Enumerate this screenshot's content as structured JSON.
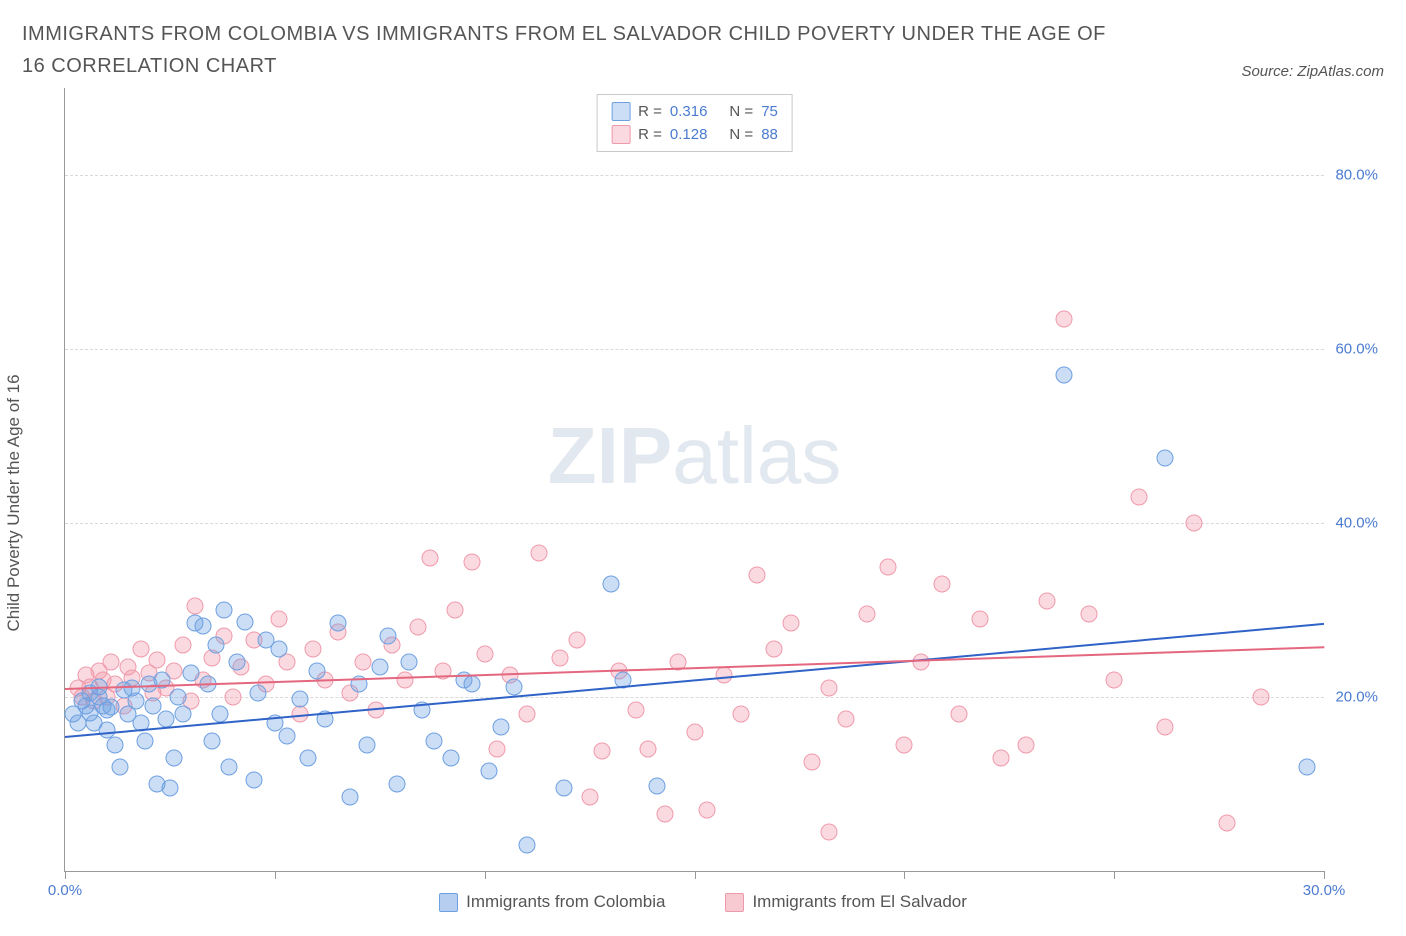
{
  "title": "IMMIGRANTS FROM COLOMBIA VS IMMIGRANTS FROM EL SALVADOR CHILD POVERTY UNDER THE AGE OF 16 CORRELATION CHART",
  "source_label": "Source: ZipAtlas.com",
  "y_axis_label": "Child Poverty Under the Age of 16",
  "watermark": {
    "bold": "ZIP",
    "light": "atlas"
  },
  "chart": {
    "type": "scatter",
    "background_color": "#ffffff",
    "grid_color": "#d9d9d9",
    "axis_color": "#999999",
    "tick_label_color": "#4a7bd0",
    "xlim": [
      0,
      30
    ],
    "ylim": [
      0,
      90
    ],
    "xticks": [
      0,
      5,
      10,
      15,
      20,
      25,
      30
    ],
    "xtick_labels": [
      "0.0%",
      "",
      "",
      "",
      "",
      "",
      "30.0%"
    ],
    "y_gridlines": [
      20,
      40,
      60,
      80
    ],
    "ytick_labels": [
      "20.0%",
      "40.0%",
      "60.0%",
      "80.0%"
    ],
    "point_radius": 8.5,
    "series": [
      {
        "name": "Immigrants from Colombia",
        "fill": "rgba(110,160,225,0.35)",
        "stroke": "#6ea0e1",
        "line_color": "#2f63c7",
        "r": "0.316",
        "n": "75",
        "trend": {
          "x1": 0,
          "y1": 15.5,
          "x2": 30,
          "y2": 28.5
        },
        "points": [
          [
            0.2,
            18
          ],
          [
            0.3,
            17
          ],
          [
            0.4,
            19.5
          ],
          [
            0.5,
            19
          ],
          [
            0.6,
            20.5
          ],
          [
            0.6,
            18.2
          ],
          [
            0.7,
            17
          ],
          [
            0.8,
            20
          ],
          [
            0.8,
            21.2
          ],
          [
            0.9,
            19
          ],
          [
            1.0,
            18.5
          ],
          [
            1.0,
            16.2
          ],
          [
            1.1,
            18.8
          ],
          [
            1.2,
            14.5
          ],
          [
            1.3,
            12
          ],
          [
            1.4,
            20.8
          ],
          [
            1.5,
            18
          ],
          [
            1.6,
            21
          ],
          [
            1.7,
            19.5
          ],
          [
            1.8,
            17
          ],
          [
            1.9,
            15
          ],
          [
            2.0,
            21.5
          ],
          [
            2.1,
            19
          ],
          [
            2.2,
            10
          ],
          [
            2.3,
            22
          ],
          [
            2.4,
            17.5
          ],
          [
            2.5,
            9.5
          ],
          [
            2.6,
            13
          ],
          [
            2.7,
            20
          ],
          [
            2.8,
            18
          ],
          [
            3.0,
            22.8
          ],
          [
            3.1,
            28.5
          ],
          [
            3.3,
            28.2
          ],
          [
            3.4,
            21.5
          ],
          [
            3.5,
            15
          ],
          [
            3.6,
            26
          ],
          [
            3.7,
            18
          ],
          [
            3.8,
            30
          ],
          [
            3.9,
            12
          ],
          [
            4.1,
            24
          ],
          [
            4.3,
            28.6
          ],
          [
            4.5,
            10.5
          ],
          [
            4.6,
            20.5
          ],
          [
            4.8,
            26.5
          ],
          [
            5.0,
            17
          ],
          [
            5.1,
            25.5
          ],
          [
            5.3,
            15.5
          ],
          [
            5.6,
            19.8
          ],
          [
            5.8,
            13
          ],
          [
            6.0,
            23
          ],
          [
            6.2,
            17.5
          ],
          [
            6.5,
            28.5
          ],
          [
            6.8,
            8.5
          ],
          [
            7.0,
            21.5
          ],
          [
            7.2,
            14.5
          ],
          [
            7.5,
            23.5
          ],
          [
            7.7,
            27
          ],
          [
            7.9,
            10
          ],
          [
            8.2,
            24
          ],
          [
            8.5,
            18.5
          ],
          [
            8.8,
            15
          ],
          [
            9.2,
            13
          ],
          [
            9.5,
            22
          ],
          [
            9.7,
            21.5
          ],
          [
            10.1,
            11.5
          ],
          [
            10.4,
            16.5
          ],
          [
            10.7,
            21.2
          ],
          [
            11.0,
            3
          ],
          [
            11.9,
            9.5
          ],
          [
            13.0,
            33
          ],
          [
            13.3,
            22
          ],
          [
            14.1,
            9.8
          ],
          [
            23.8,
            57
          ],
          [
            26.2,
            47.5
          ],
          [
            29.6,
            12
          ]
        ]
      },
      {
        "name": "Immigrants from El Salvador",
        "fill": "rgba(240,150,165,0.35)",
        "stroke": "#ef9aab",
        "line_color": "#e4677f",
        "r": "0.128",
        "n": "88",
        "trend": {
          "x1": 0,
          "y1": 21,
          "x2": 30,
          "y2": 25.8
        },
        "points": [
          [
            0.3,
            21
          ],
          [
            0.4,
            20
          ],
          [
            0.5,
            22.5
          ],
          [
            0.6,
            21.2
          ],
          [
            0.7,
            19.5
          ],
          [
            0.8,
            23
          ],
          [
            0.9,
            22
          ],
          [
            1.0,
            20
          ],
          [
            1.1,
            24
          ],
          [
            1.2,
            21.5
          ],
          [
            1.4,
            19
          ],
          [
            1.5,
            23.5
          ],
          [
            1.6,
            22.2
          ],
          [
            1.8,
            25.5
          ],
          [
            2.0,
            22.8
          ],
          [
            2.1,
            20.5
          ],
          [
            2.2,
            24.2
          ],
          [
            2.4,
            21
          ],
          [
            2.6,
            23
          ],
          [
            2.8,
            26
          ],
          [
            3.0,
            19.5
          ],
          [
            3.1,
            30.5
          ],
          [
            3.3,
            22
          ],
          [
            3.5,
            24.5
          ],
          [
            3.8,
            27
          ],
          [
            4.0,
            20
          ],
          [
            4.2,
            23.5
          ],
          [
            4.5,
            26.5
          ],
          [
            4.8,
            21.5
          ],
          [
            5.1,
            29
          ],
          [
            5.3,
            24
          ],
          [
            5.6,
            18
          ],
          [
            5.9,
            25.5
          ],
          [
            6.2,
            22
          ],
          [
            6.5,
            27.5
          ],
          [
            6.8,
            20.5
          ],
          [
            7.1,
            24
          ],
          [
            7.4,
            18.5
          ],
          [
            7.8,
            26
          ],
          [
            8.1,
            22
          ],
          [
            8.4,
            28
          ],
          [
            8.7,
            36
          ],
          [
            9.0,
            23
          ],
          [
            9.3,
            30
          ],
          [
            9.7,
            35.5
          ],
          [
            10.0,
            25
          ],
          [
            10.3,
            14
          ],
          [
            10.6,
            22.5
          ],
          [
            11.0,
            18
          ],
          [
            11.3,
            36.5
          ],
          [
            11.8,
            24.5
          ],
          [
            12.2,
            26.5
          ],
          [
            12.5,
            8.5
          ],
          [
            12.8,
            13.8
          ],
          [
            13.2,
            23
          ],
          [
            13.6,
            18.5
          ],
          [
            13.9,
            14
          ],
          [
            14.3,
            6.5
          ],
          [
            14.6,
            24
          ],
          [
            15.0,
            16
          ],
          [
            15.3,
            7
          ],
          [
            15.7,
            22.5
          ],
          [
            16.1,
            18
          ],
          [
            16.5,
            34
          ],
          [
            16.9,
            25.5
          ],
          [
            17.3,
            28.5
          ],
          [
            17.8,
            12.5
          ],
          [
            18.2,
            21
          ],
          [
            18.6,
            17.5
          ],
          [
            19.1,
            29.5
          ],
          [
            19.6,
            35
          ],
          [
            20.0,
            14.5
          ],
          [
            20.4,
            24
          ],
          [
            20.9,
            33
          ],
          [
            21.3,
            18
          ],
          [
            21.8,
            29
          ],
          [
            22.3,
            13
          ],
          [
            22.9,
            14.5
          ],
          [
            23.4,
            31
          ],
          [
            23.8,
            63.5
          ],
          [
            24.4,
            29.5
          ],
          [
            25.0,
            22
          ],
          [
            25.6,
            43
          ],
          [
            26.2,
            16.5
          ],
          [
            26.9,
            40
          ],
          [
            27.7,
            5.5
          ],
          [
            28.5,
            20
          ],
          [
            18.2,
            4.5
          ]
        ]
      }
    ],
    "legend_bottom": [
      {
        "label": "Immigrants from Colombia",
        "fill": "rgba(110,160,225,0.5)",
        "stroke": "#6ea0e1"
      },
      {
        "label": "Immigrants from El Salvador",
        "fill": "rgba(240,150,165,0.5)",
        "stroke": "#ef9aab"
      }
    ]
  }
}
